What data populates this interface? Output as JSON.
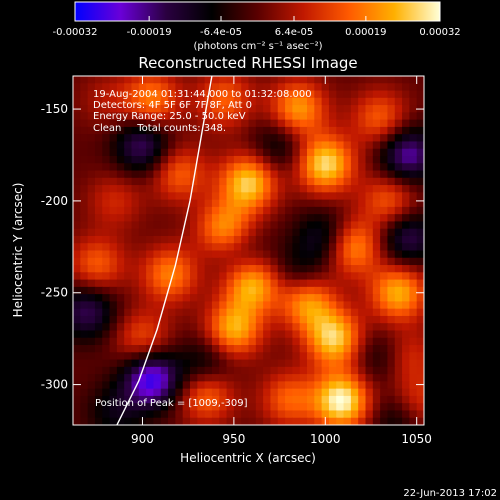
{
  "chart_data": {
    "type": "heatmap",
    "title": "Reconstructed RHESSI Image",
    "xlabel": "Heliocentric X (arcsec)",
    "ylabel": "Heliocentric Y (arcsec)",
    "xlim": [
      862,
      1054
    ],
    "ylim": [
      -322,
      -132
    ],
    "x_ticks": [
      900,
      950,
      1000,
      1050
    ],
    "y_ticks": [
      -150,
      -200,
      -250,
      -300
    ],
    "colorbar": {
      "range": [
        -0.00032,
        0.00032
      ],
      "tick_values": [
        -0.00032,
        -0.00019,
        -6.4e-05,
        6.4e-05,
        0.00019,
        0.00032
      ],
      "tick_labels": [
        "-0.00032",
        "-0.00019",
        "-6.4e-05",
        "6.4e-05",
        "0.00019",
        "0.00032"
      ],
      "units": "(photons cm⁻² s⁻¹ asec⁻²)",
      "colormap": [
        "#0000ff",
        "#6a00d8",
        "#2a0040",
        "#000000",
        "#5a0000",
        "#c01800",
        "#ff5a00",
        "#ffb000",
        "#ffffd8"
      ]
    },
    "annotations": [
      "19-Aug-2004 01:31:44.000 to 01:32:08.000",
      "Detectors: 4F 5F 6F 7F 8F, Att 0",
      "Energy Range: 25.0 - 50.0 keV",
      "Clean     Total counts: 348."
    ],
    "peak": {
      "label": "Position of Peak = [1009,-309]",
      "x": 1009,
      "y": -309
    },
    "limb": [
      [
        938,
        -132
      ],
      [
        933,
        -160
      ],
      [
        926,
        -200
      ],
      [
        918,
        -235
      ],
      [
        908,
        -270
      ],
      [
        898,
        -298
      ],
      [
        886,
        -322
      ]
    ],
    "blobs": [
      {
        "x": 880,
        "y": -145,
        "v": 0.2
      },
      {
        "x": 905,
        "y": -145,
        "v": 0.6
      },
      {
        "x": 945,
        "y": -145,
        "v": 0.5
      },
      {
        "x": 985,
        "y": -150,
        "v": 0.7
      },
      {
        "x": 1030,
        "y": -155,
        "v": 0.5
      },
      {
        "x": 920,
        "y": -185,
        "v": 0.5
      },
      {
        "x": 958,
        "y": -190,
        "v": 0.85
      },
      {
        "x": 1000,
        "y": -180,
        "v": 0.9
      },
      {
        "x": 1035,
        "y": -200,
        "v": 0.5
      },
      {
        "x": 885,
        "y": -200,
        "v": 0.3
      },
      {
        "x": 945,
        "y": -215,
        "v": 0.65
      },
      {
        "x": 1015,
        "y": -225,
        "v": 0.7
      },
      {
        "x": 875,
        "y": -235,
        "v": 0.5
      },
      {
        "x": 915,
        "y": -240,
        "v": 0.6
      },
      {
        "x": 960,
        "y": -245,
        "v": 0.8
      },
      {
        "x": 990,
        "y": -255,
        "v": 0.7
      },
      {
        "x": 1040,
        "y": -250,
        "v": 0.75
      },
      {
        "x": 900,
        "y": -275,
        "v": 0.45
      },
      {
        "x": 950,
        "y": -270,
        "v": 0.75
      },
      {
        "x": 1005,
        "y": -275,
        "v": 0.85
      },
      {
        "x": 1045,
        "y": -285,
        "v": 0.35
      },
      {
        "x": 935,
        "y": -305,
        "v": 0.6
      },
      {
        "x": 980,
        "y": -308,
        "v": 0.5
      },
      {
        "x": 1009,
        "y": -309,
        "v": 1.0
      },
      {
        "x": 1050,
        "y": -310,
        "v": 0.4
      },
      {
        "x": 900,
        "y": -170,
        "v": -0.6
      },
      {
        "x": 1045,
        "y": -175,
        "v": -0.7
      },
      {
        "x": 975,
        "y": -170,
        "v": -0.35
      },
      {
        "x": 955,
        "y": -230,
        "v": -0.25
      },
      {
        "x": 1000,
        "y": -220,
        "v": -0.45
      },
      {
        "x": 1045,
        "y": -220,
        "v": -0.55
      },
      {
        "x": 870,
        "y": -260,
        "v": -0.55
      },
      {
        "x": 985,
        "y": -240,
        "v": -0.3
      },
      {
        "x": 935,
        "y": -290,
        "v": -0.4
      },
      {
        "x": 1030,
        "y": -285,
        "v": -0.3
      },
      {
        "x": 905,
        "y": -297,
        "v": -0.9
      },
      {
        "x": 885,
        "y": -315,
        "v": -0.3
      },
      {
        "x": 1040,
        "y": -318,
        "v": -0.35
      }
    ]
  },
  "footer": {
    "timestamp": "22-Jun-2013 17:02"
  }
}
